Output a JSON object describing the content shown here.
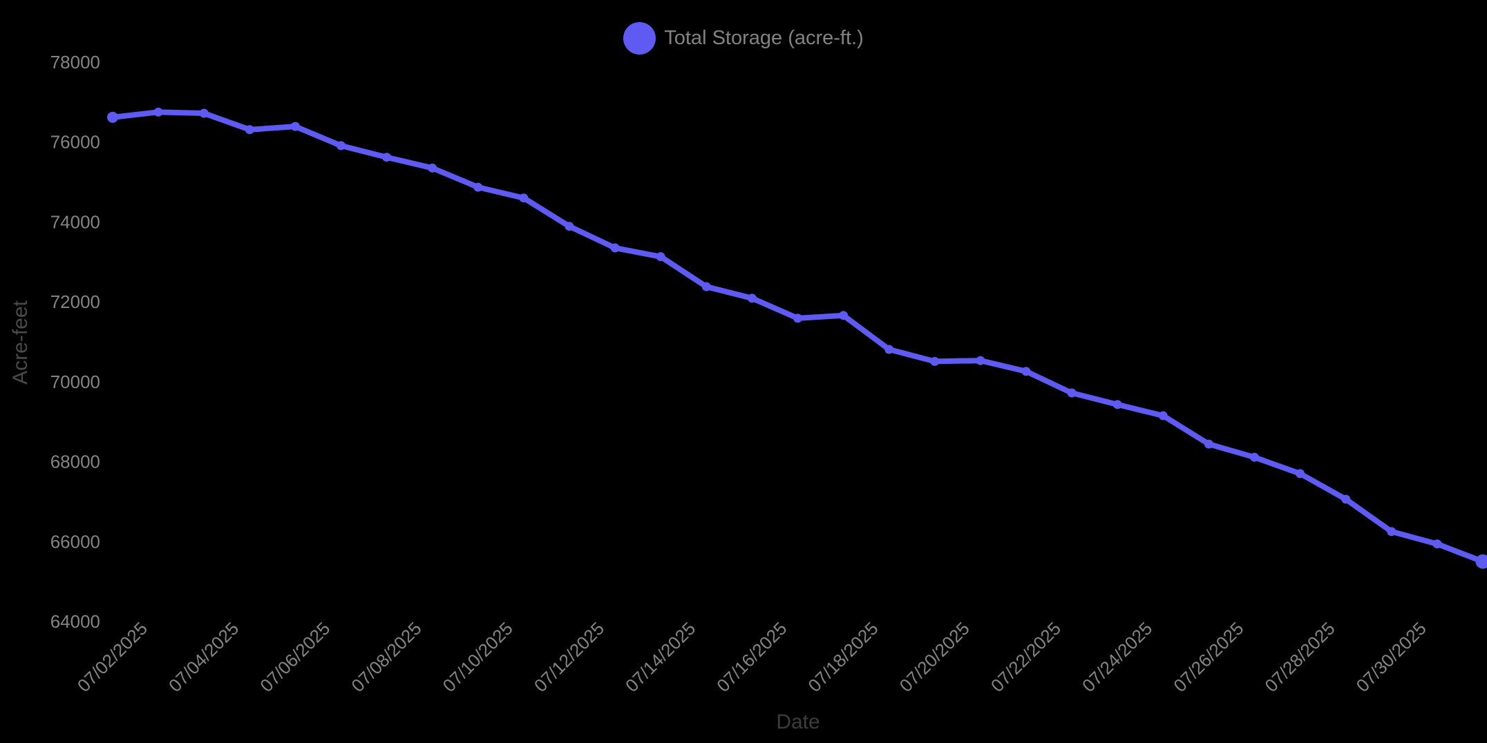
{
  "legend": {
    "label": "Total Storage (acre-ft.)"
  },
  "axes": {
    "y_title": "Acre-feet",
    "x_title": "Date"
  },
  "colors": {
    "background": "#000000",
    "line": "#5E5AF2",
    "marker": "#5E5AF2",
    "tick_label": "#848484",
    "legend_text": "#828282",
    "y_title_text": "#4A4A4A",
    "x_title_text": "#3C3C3C"
  },
  "chart_data": {
    "type": "line",
    "title": "",
    "xlabel": "Date",
    "ylabel": "Acre-feet",
    "series": [
      {
        "name": "Total Storage (acre-ft.)",
        "values": [
          76620,
          76750,
          76720,
          76310,
          76390,
          75910,
          75620,
          75350,
          74870,
          74600,
          73890,
          73350,
          73130,
          72380,
          72090,
          71590,
          71660,
          70810,
          70510,
          70530,
          70260,
          69720,
          69430,
          69150,
          68440,
          68110,
          67700,
          67060,
          66250,
          65940,
          65500
        ]
      }
    ],
    "x": [
      "07/01/2025",
      "07/02/2025",
      "07/03/2025",
      "07/04/2025",
      "07/05/2025",
      "07/06/2025",
      "07/07/2025",
      "07/08/2025",
      "07/09/2025",
      "07/10/2025",
      "07/11/2025",
      "07/12/2025",
      "07/13/2025",
      "07/14/2025",
      "07/15/2025",
      "07/16/2025",
      "07/17/2025",
      "07/18/2025",
      "07/19/2025",
      "07/20/2025",
      "07/21/2025",
      "07/22/2025",
      "07/23/2025",
      "07/24/2025",
      "07/25/2025",
      "07/26/2025",
      "07/27/2025",
      "07/28/2025",
      "07/29/2025",
      "07/30/2025",
      "07/31/2025"
    ],
    "xtick_labels": [
      "07/02/2025",
      "07/04/2025",
      "07/06/2025",
      "07/08/2025",
      "07/10/2025",
      "07/12/2025",
      "07/14/2025",
      "07/16/2025",
      "07/18/2025",
      "07/20/2025",
      "07/22/2025",
      "07/24/2025",
      "07/26/2025",
      "07/28/2025",
      "07/30/2025"
    ],
    "yticks": [
      64000,
      66000,
      68000,
      70000,
      72000,
      74000,
      76000,
      78000
    ],
    "ylim": [
      64000,
      78000
    ],
    "grid": false,
    "legend_position": "top-center"
  }
}
